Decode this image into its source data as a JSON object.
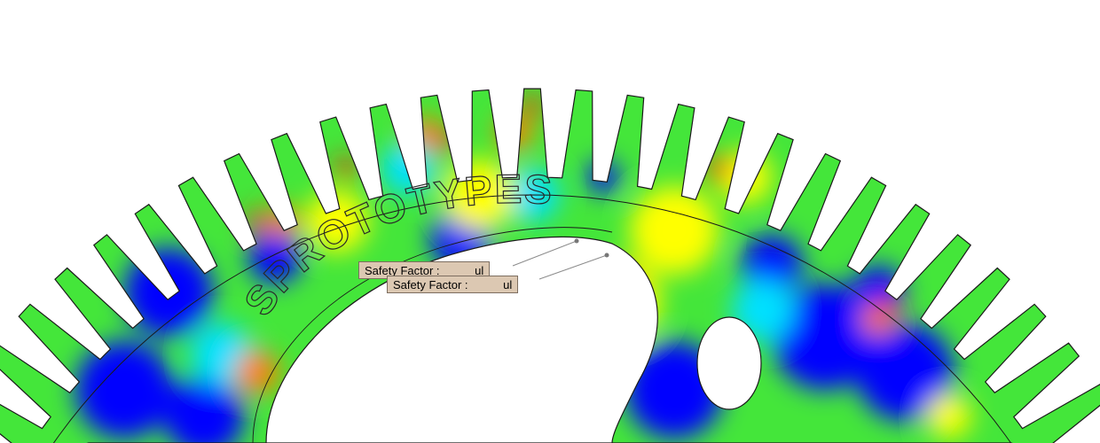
{
  "viewport": {
    "background": "#ffffff",
    "part_outline_color": "#1a1a1a"
  },
  "fea_colormap": {
    "low": "#0000ff",
    "low_mid": "#00e0ff",
    "mid": "#00ff40",
    "mid_high": "#ffff00",
    "high": "#ff8000",
    "max": "#ff2000"
  },
  "part": {
    "engraved_text": "SPROTOTYPES"
  },
  "probes": [
    {
      "label": "Safety Factor :",
      "value": "",
      "unit": "ul"
    },
    {
      "label": "Safety Factor :",
      "value": "",
      "unit": "ul"
    }
  ]
}
